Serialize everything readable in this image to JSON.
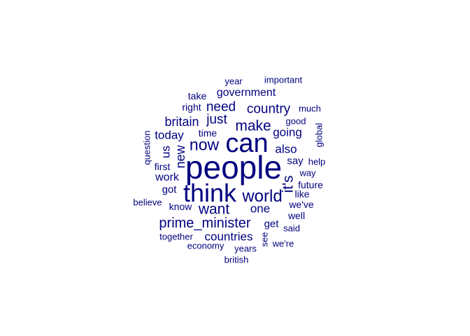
{
  "word_cloud": {
    "color": "#000080",
    "words": [
      "people",
      "can",
      "think",
      "world",
      "now",
      "want",
      "make",
      "it's",
      "prime_minister",
      "country",
      "just",
      "need",
      "britain",
      "today",
      "new",
      "us",
      "going",
      "also",
      "one",
      "countries",
      "government",
      "work",
      "got",
      "time",
      "right",
      "take",
      "get",
      "say",
      "know",
      "first",
      "year",
      "important",
      "much",
      "good",
      "global",
      "question",
      "help",
      "way",
      "future",
      "like",
      "we've",
      "well",
      "said",
      "see",
      "together",
      "economy",
      "years",
      "we're",
      "british",
      "believe"
    ]
  }
}
